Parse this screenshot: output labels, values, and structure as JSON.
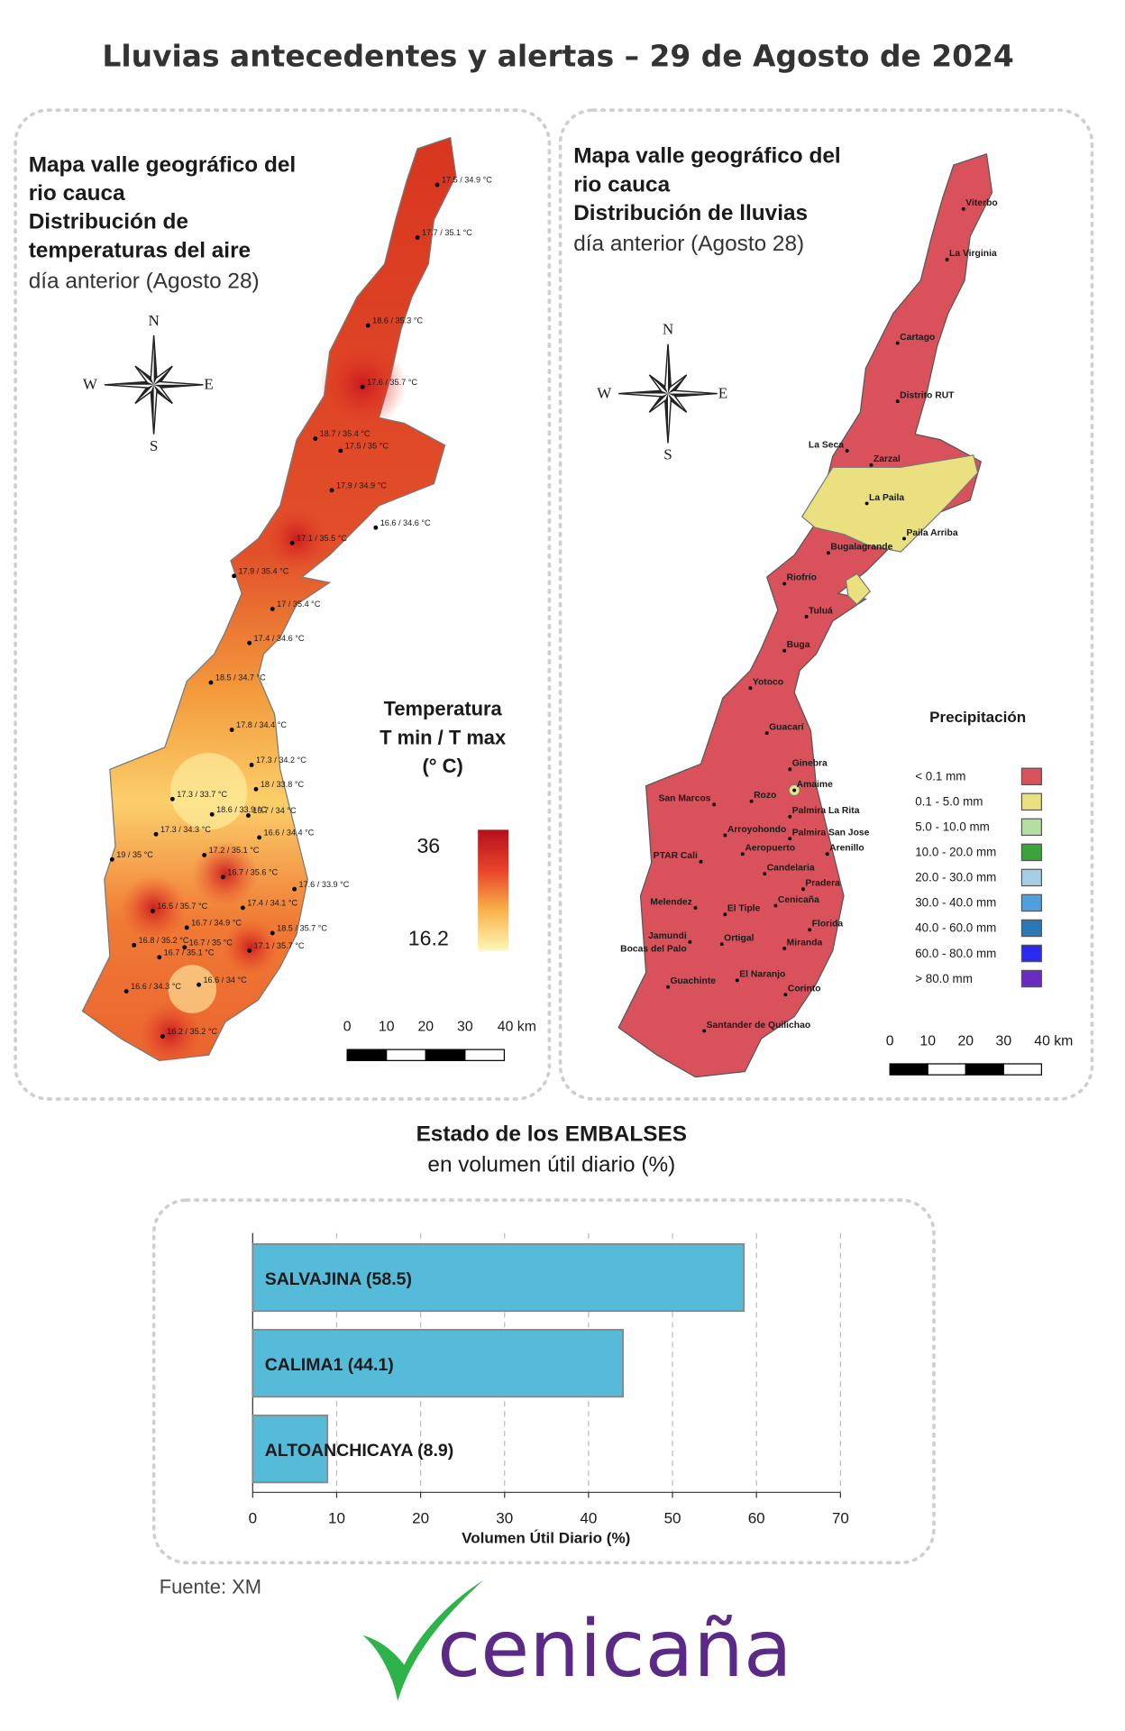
{
  "title": "Lluvias antecedentes y alertas – 29 de Agosto de 2024",
  "temp_map": {
    "title_lines": [
      "Mapa valle geográfico del",
      "rio cauca",
      "Distribución de",
      "temperaturas del aire"
    ],
    "subtitle": "día anterior (Agosto 28)",
    "compass": [
      "N",
      "S",
      "W",
      "E"
    ],
    "stations": [
      "17.5 / 34.9 °C",
      "17.7 / 35.1 °C",
      "18.6 / 35.3 °C",
      "17.6 / 35.7 °C",
      "18.7 / 35.4 °C",
      "17.5 / 35 °C",
      "17.9 / 34.9 °C",
      "16.6 / 34.6 °C",
      "17.1 / 35.5 °C",
      "17.9 / 35.4 °C",
      "17 / 35.4 °C",
      "17.4 / 34.6 °C",
      "18.5 / 34.7 °C",
      "17.8 / 34.4 °C",
      "17.3 / 34.2 °C",
      "18 / 33.8 °C",
      "17.3 / 33.7 °C",
      "18.6 / 33.9 °C",
      "16.7 / 34 °C",
      "16.6 / 34.4 °C",
      "17.3 / 34.3 °C",
      "19 / 35 °C",
      "17.2 / 35.1 °C",
      "16.7 / 35.6 °C",
      "17.6 / 33.9 °C",
      "17.4 / 34.1 °C",
      "16.5 / 35.7 °C",
      "16.7 / 34.9 °C",
      "18.5 / 35.7 °C",
      "16.8 / 35.2 °C",
      "16.7 / 35.1 °C",
      "16.7 / 35 °C",
      "17.1 / 35.7 °C",
      "16.6 / 34 °C",
      "16.6 / 34.3 °C",
      "16.2 / 35.2 °C"
    ],
    "legend_title": [
      "Temperatura",
      "T min / T max",
      "(° C)"
    ],
    "legend_max": 36,
    "legend_min": 16.2,
    "legend_colors": [
      "#fff7b8",
      "#f9b24a",
      "#e8432a",
      "#b3101c"
    ],
    "scale_labels": [
      "0",
      "10",
      "20",
      "30",
      "40 km"
    ]
  },
  "rain_map": {
    "title_lines": [
      "Mapa valle geográfico del",
      "rio cauca",
      "Distribución de lluvias"
    ],
    "subtitle": "día anterior (Agosto 28)",
    "compass": [
      "N",
      "S",
      "W",
      "E"
    ],
    "stations": [
      "Viterbo",
      "La Virginia",
      "Cartago",
      "Distrito RUT",
      "La Seca",
      "Zarzal",
      "La Paila",
      "Paila Arriba",
      "Bugalagrande",
      "Riofrío",
      "Tuluá",
      "Buga",
      "Yotoco",
      "Guacarí",
      "Ginebra",
      "Amaime",
      "San Marcos",
      "Rozo",
      "Palmira La Rita",
      "Arroyohondo",
      "Palmira San Jose",
      "Aeropuerto",
      "Arenillo",
      "PTAR Cali",
      "Candelaria",
      "Pradera",
      "Cenicaña",
      "Melendez",
      "El Tiple",
      "Florida",
      "Jamundi",
      "Bocas del Palo",
      "Ortigal",
      "Miranda",
      "El Naranjo",
      "Guachinte",
      "Corinto",
      "Santander de Quilichao"
    ],
    "legend_title": "Precipitación",
    "legend": [
      {
        "label": "< 0.1 mm",
        "color": "#d9525b"
      },
      {
        "label": "0.1 - 5.0 mm",
        "color": "#ebe07f"
      },
      {
        "label": "5.0 - 10.0 mm",
        "color": "#b5dea0"
      },
      {
        "label": "10.0 - 20.0 mm",
        "color": "#3aa43a"
      },
      {
        "label": "20.0 - 30.0 mm",
        "color": "#a8cde6"
      },
      {
        "label": "30.0 - 40.0 mm",
        "color": "#4fa0df"
      },
      {
        "label": "40.0 - 60.0 mm",
        "color": "#2a78b8"
      },
      {
        "label": "60.0 - 80.0 mm",
        "color": "#2a2af0"
      },
      {
        "label": "> 80.0 mm",
        "color": "#6a2cc0"
      }
    ],
    "scale_labels": [
      "0",
      "10",
      "20",
      "30",
      "40 km"
    ]
  },
  "chart_data": {
    "type": "bar",
    "title": "Estado de los EMBALSES",
    "subtitle": "en volumen útil diario (%)",
    "values": [
      58.5,
      44.1,
      8.9
    ],
    "value_labels": [
      "SALVAJINA (58.5)",
      "CALIMA1 (44.1)",
      "ALTOANCHICAYA (8.9)"
    ],
    "color": "#56bbd9",
    "xlim": [
      0,
      70
    ],
    "xticks": [
      0,
      10,
      20,
      30,
      40,
      50,
      60,
      70
    ],
    "xlabel": "Volumen Útil Diario (%)",
    "grid": true
  },
  "source": "Fuente: XM",
  "logo": "cenicaña"
}
